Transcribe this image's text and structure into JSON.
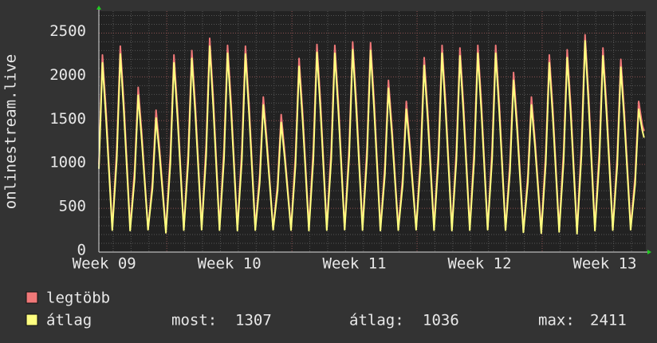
{
  "chart_data": {
    "type": "line",
    "ylabel": "onlinestream.live",
    "x": [
      0,
      0.2,
      0.4,
      0.75,
      1.0,
      1.2,
      1.4,
      1.75,
      2.0,
      2.2,
      2.4,
      2.75,
      3.0,
      3.2,
      3.4,
      3.75,
      4.0,
      4.2,
      4.4,
      4.75,
      5.0,
      5.2,
      5.4,
      5.75,
      6.0,
      6.2,
      6.4,
      6.75,
      7.0,
      7.2,
      7.4,
      7.75,
      8.0,
      8.2,
      8.4,
      8.75,
      9.0,
      9.2,
      9.4,
      9.75,
      10.0,
      10.2,
      10.4,
      10.75,
      11.0,
      11.2,
      11.4,
      11.75,
      12.0,
      12.2,
      12.4,
      12.75,
      13.0,
      13.2,
      13.4,
      13.75,
      14.0,
      14.2,
      14.4,
      14.75,
      15.0,
      15.2,
      15.4,
      15.75,
      16.0,
      16.2,
      16.4,
      16.75,
      17.0,
      17.2,
      17.4,
      17.75,
      18.0,
      18.2,
      18.4,
      18.75,
      19.0,
      19.2,
      19.4,
      19.75,
      20.0,
      20.2,
      20.4,
      20.75,
      21.0,
      21.2,
      21.4,
      21.75,
      22.0,
      22.2,
      22.4,
      22.75,
      23.0,
      23.2,
      23.4,
      23.75,
      24.0,
      24.2,
      24.4,
      24.75,
      25.0,
      25.2,
      25.4,
      25.75,
      26.0,
      26.2,
      26.4,
      26.75,
      27.0,
      27.2,
      27.4,
      27.75,
      28.0,
      28.2,
      28.4,
      28.75,
      29.0,
      29.2,
      29.4,
      29.75,
      30.0,
      30.2,
      30.4,
      30.5
    ],
    "series": [
      {
        "name": "legtöbb",
        "color": "#f07878",
        "values": [
          1000,
          2250,
          1620,
          270,
          1175,
          2350,
          1692,
          280,
          940,
          1880,
          1354,
          260,
          810,
          1620,
          1166,
          250,
          1125,
          2250,
          1620,
          270,
          1150,
          2300,
          1656,
          280,
          1220,
          2440,
          1757,
          290,
          1180,
          2360,
          1699,
          270,
          1175,
          2350,
          1692,
          280,
          885,
          1770,
          1274,
          260,
          785,
          1570,
          1130,
          270,
          1105,
          2210,
          1591,
          290,
          1185,
          2370,
          1706,
          280,
          1180,
          2360,
          1699,
          270,
          1200,
          2400,
          1728,
          280,
          1195,
          2390,
          1721,
          270,
          980,
          1960,
          1411,
          280,
          860,
          1720,
          1238,
          270,
          1110,
          2220,
          1598,
          290,
          1180,
          2360,
          1699,
          270,
          1165,
          2330,
          1678,
          280,
          1180,
          2360,
          1699,
          270,
          1180,
          2360,
          1699,
          260,
          1025,
          2050,
          1476,
          240,
          885,
          1770,
          1274,
          250,
          1125,
          2250,
          1620,
          260,
          1155,
          2310,
          1663,
          240,
          1240,
          2480,
          1786,
          280,
          1165,
          2330,
          1678,
          270,
          1100,
          2200,
          1584,
          290,
          860,
          1720,
          1450,
          1380
        ]
      },
      {
        "name": "átlag",
        "color": "#ffff80",
        "values": [
          950,
          2160,
          1530,
          250,
          1058,
          2260,
          1598,
          245,
          846,
          1790,
          1278,
          255,
          729,
          1530,
          1102,
          220,
          1013,
          2160,
          1530,
          250,
          1035,
          2210,
          1564,
          255,
          1098,
          2350,
          1659,
          250,
          1062,
          2270,
          1605,
          245,
          1058,
          2260,
          1598,
          250,
          797,
          1680,
          1204,
          255,
          707,
          1480,
          1068,
          250,
          995,
          2120,
          1503,
          245,
          1067,
          2280,
          1612,
          250,
          1062,
          2270,
          1605,
          255,
          1080,
          2310,
          1632,
          250,
          1076,
          2300,
          1625,
          245,
          882,
          1870,
          1333,
          250,
          774,
          1630,
          1170,
          255,
          999,
          2130,
          1510,
          250,
          1062,
          2270,
          1605,
          245,
          1049,
          2240,
          1584,
          250,
          1062,
          2270,
          1605,
          255,
          1062,
          2270,
          1605,
          250,
          923,
          1960,
          1394,
          225,
          797,
          1680,
          1204,
          215,
          1013,
          2160,
          1530,
          230,
          1040,
          2220,
          1571,
          210,
          1116,
          2411,
          1686,
          245,
          1049,
          2240,
          1584,
          250,
          990,
          2110,
          1496,
          255,
          774,
          1630,
          1390,
          1307
        ]
      }
    ],
    "xlim": [
      0,
      30.6
    ],
    "xticks": [
      {
        "value": 0.3,
        "label": "Week 09"
      },
      {
        "value": 7.3,
        "label": "Week 10"
      },
      {
        "value": 14.3,
        "label": "Week 11"
      },
      {
        "value": 21.3,
        "label": "Week 12"
      },
      {
        "value": 28.3,
        "label": "Week 13"
      }
    ],
    "xgrid_major": [
      3.8,
      10.8,
      17.8,
      24.8
    ],
    "xgrid_minor": [
      0.8,
      1.8,
      2.8,
      4.8,
      5.8,
      6.8,
      7.8,
      8.8,
      9.8,
      11.8,
      12.8,
      13.8,
      14.8,
      15.8,
      16.8,
      18.8,
      19.8,
      20.8,
      21.8,
      22.8,
      23.8,
      25.8,
      26.8,
      27.8,
      28.8,
      29.8
    ],
    "ylim": [
      0,
      2750
    ],
    "yticks": [
      0,
      500,
      1000,
      1500,
      2000,
      2500
    ],
    "ygrid_minor": [
      100,
      200,
      300,
      400,
      600,
      700,
      800,
      900,
      1100,
      1200,
      1300,
      1400,
      1600,
      1700,
      1800,
      1900,
      2100,
      2200,
      2300,
      2400,
      2600,
      2700
    ],
    "stats": [
      {
        "label": "most:",
        "value": 1307
      },
      {
        "label": "átlag:",
        "value": 1036
      },
      {
        "label": "max:",
        "value": 2411
      }
    ]
  }
}
